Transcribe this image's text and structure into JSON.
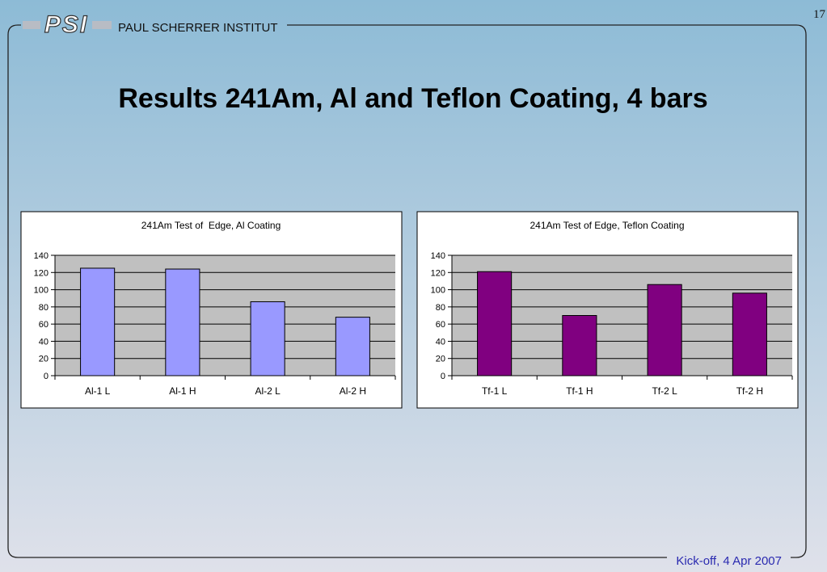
{
  "slide": {
    "page_number": "17",
    "logo": "PSI",
    "institute": "PAUL SCHERRER INSTITUT",
    "title": "Results 241Am, Al and Teflon Coating, 4 bars",
    "footer": "Kick-off, 4 Apr 2007"
  },
  "chart_data": [
    {
      "type": "bar",
      "title": "241Am Test of  Edge, Al Coating",
      "categories": [
        "Al-1 L",
        "Al-1 H",
        "Al-2 L",
        "Al-2 H"
      ],
      "values": [
        125,
        124,
        86,
        68
      ],
      "color": "#9999ff",
      "ylim": [
        0,
        140
      ],
      "yticks": [
        0,
        20,
        40,
        60,
        80,
        100,
        120,
        140
      ],
      "grid": true
    },
    {
      "type": "bar",
      "title": "241Am Test of Edge, Teflon Coating",
      "categories": [
        "Tf-1 L",
        "Tf-1 H",
        "Tf-2 L",
        "Tf-2 H"
      ],
      "values": [
        121,
        70,
        106,
        96
      ],
      "color": "#800080",
      "ylim": [
        0,
        140
      ],
      "yticks": [
        0,
        20,
        40,
        60,
        80,
        100,
        120,
        140
      ],
      "grid": true
    }
  ]
}
